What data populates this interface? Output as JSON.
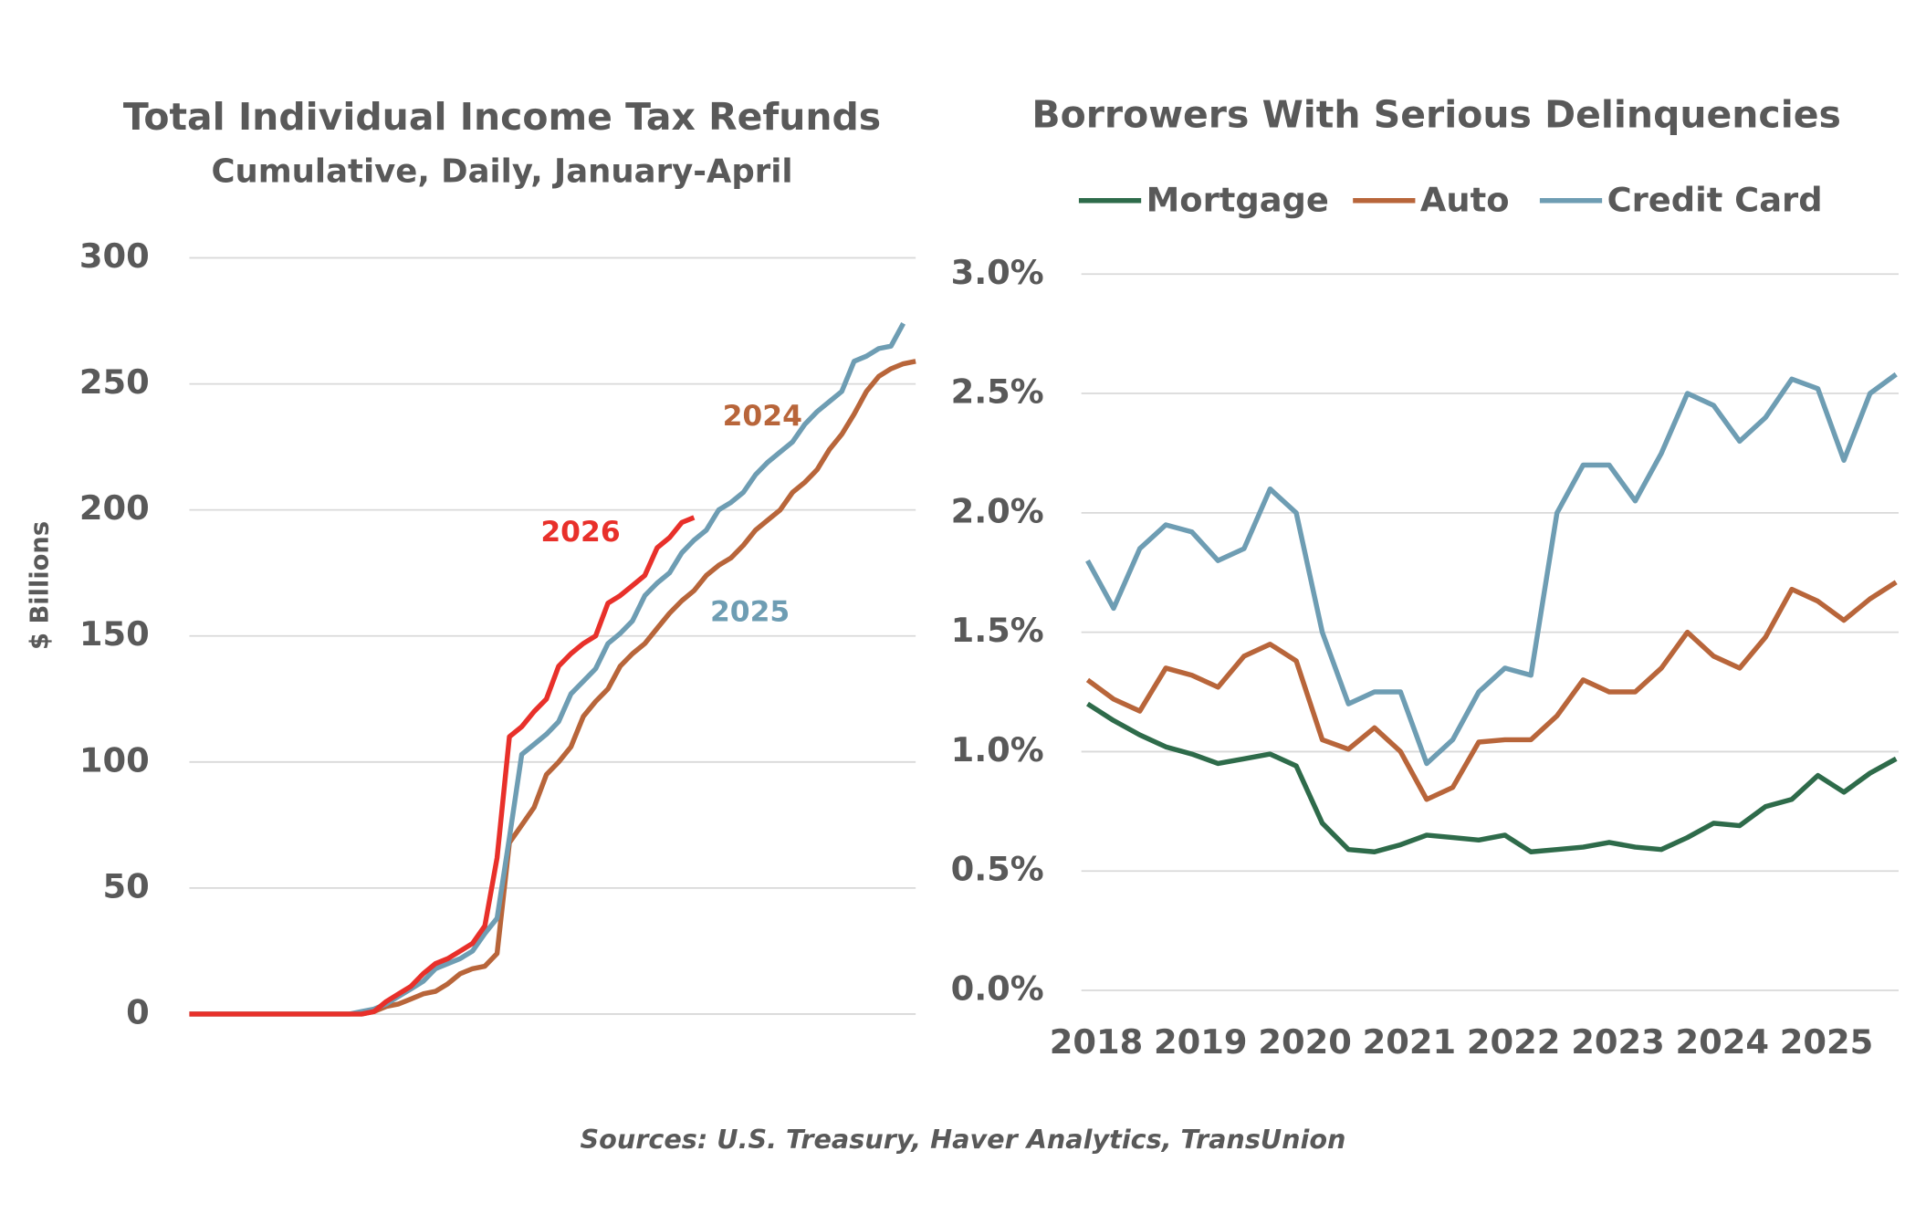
{
  "chart_data": [
    {
      "type": "line",
      "title": "Total Individual Income Tax Refunds",
      "subtitle": "Cumulative, Daily, January-April",
      "y_label": "$ Billions",
      "ylim": [
        0,
        300
      ],
      "yticks": [
        0,
        50,
        100,
        150,
        200,
        250,
        300
      ],
      "grid": true,
      "series": [
        {
          "name": "2024",
          "color": "#b8653a",
          "values": [
            0,
            0,
            0,
            0,
            0,
            0,
            0,
            0,
            0,
            0,
            0,
            0,
            0,
            0,
            0,
            1,
            3,
            4,
            6,
            8,
            9,
            12,
            16,
            18,
            19,
            24,
            68,
            75,
            82,
            95,
            100,
            106,
            118,
            124,
            129,
            138,
            143,
            147,
            153,
            159,
            164,
            168,
            174,
            178,
            181,
            186,
            192,
            196,
            200,
            207,
            211,
            216,
            224,
            230,
            238,
            247,
            253,
            256,
            258,
            259
          ]
        },
        {
          "name": "2025",
          "color": "#6e9db3",
          "values": [
            0,
            0,
            0,
            0,
            0,
            0,
            0,
            0,
            0,
            0,
            0,
            0,
            0,
            0,
            1,
            2,
            4,
            7,
            10,
            13,
            18,
            20,
            22,
            25,
            32,
            38,
            70,
            103,
            107,
            111,
            116,
            127,
            132,
            137,
            147,
            151,
            156,
            166,
            171,
            175,
            183,
            188,
            192,
            200,
            203,
            207,
            214,
            219,
            223,
            227,
            234,
            239,
            243,
            247,
            259,
            261,
            264,
            265,
            274
          ]
        },
        {
          "name": "2026",
          "color": "#e8302a",
          "values": [
            0,
            0,
            0,
            0,
            0,
            0,
            0,
            0,
            0,
            0,
            0,
            0,
            0,
            0,
            0,
            1,
            5,
            8,
            11,
            16,
            20,
            22,
            25,
            28,
            35,
            62,
            110,
            114,
            120,
            125,
            138,
            143,
            147,
            150,
            163,
            166,
            170,
            174,
            185,
            189,
            195,
            197
          ]
        }
      ]
    },
    {
      "type": "line",
      "title": "Borrowers With Serious Delinquencies",
      "legend": "top",
      "categories": [
        "2018",
        null,
        null,
        null,
        "2019",
        null,
        null,
        null,
        "2020",
        null,
        null,
        null,
        "2021",
        null,
        null,
        null,
        "2022",
        null,
        null,
        null,
        "2023",
        null,
        null,
        null,
        "2024",
        null,
        null,
        null,
        "2025",
        null,
        null,
        null
      ],
      "ylim": [
        0,
        3
      ],
      "yticks": [
        {
          "value": 0,
          "label": "0.0%"
        },
        {
          "value": 0.5,
          "label": "0.5%"
        },
        {
          "value": 1,
          "label": "1.0%"
        },
        {
          "value": 1.5,
          "label": "1.5%"
        },
        {
          "value": 2,
          "label": "2.0%"
        },
        {
          "value": 2.5,
          "label": "2.5%"
        },
        {
          "value": 3,
          "label": "3.0%"
        }
      ],
      "grid": true,
      "series": [
        {
          "name": "Mortgage",
          "color": "#2e6b4a",
          "values": [
            1.2,
            1.13,
            1.07,
            1.02,
            0.99,
            0.95,
            0.97,
            0.99,
            0.94,
            0.7,
            0.59,
            0.58,
            0.61,
            0.65,
            0.64,
            0.63,
            0.65,
            0.58,
            0.59,
            0.6,
            0.62,
            0.6,
            0.59,
            0.64,
            0.7,
            0.69,
            0.77,
            0.8,
            0.9,
            0.83,
            0.91,
            0.97
          ]
        },
        {
          "name": "Auto",
          "color": "#b8653a",
          "values": [
            1.3,
            1.22,
            1.17,
            1.35,
            1.32,
            1.27,
            1.4,
            1.45,
            1.38,
            1.05,
            1.01,
            1.1,
            1.0,
            0.8,
            0.85,
            1.04,
            1.05,
            1.05,
            1.15,
            1.3,
            1.25,
            1.25,
            1.35,
            1.5,
            1.4,
            1.35,
            1.48,
            1.68,
            1.63,
            1.55,
            1.64,
            1.71
          ]
        },
        {
          "name": "Credit Card",
          "color": "#6e9db3",
          "values": [
            1.8,
            1.6,
            1.85,
            1.95,
            1.92,
            1.8,
            1.85,
            2.1,
            2.0,
            1.5,
            1.2,
            1.25,
            1.25,
            0.95,
            1.05,
            1.25,
            1.35,
            1.32,
            2.0,
            2.2,
            2.2,
            2.05,
            2.25,
            2.5,
            2.45,
            2.3,
            2.4,
            2.56,
            2.52,
            2.22,
            2.5,
            2.58
          ]
        }
      ]
    }
  ],
  "source": "Sources: U.S. Treasury, Haver Analytics, TransUnion"
}
